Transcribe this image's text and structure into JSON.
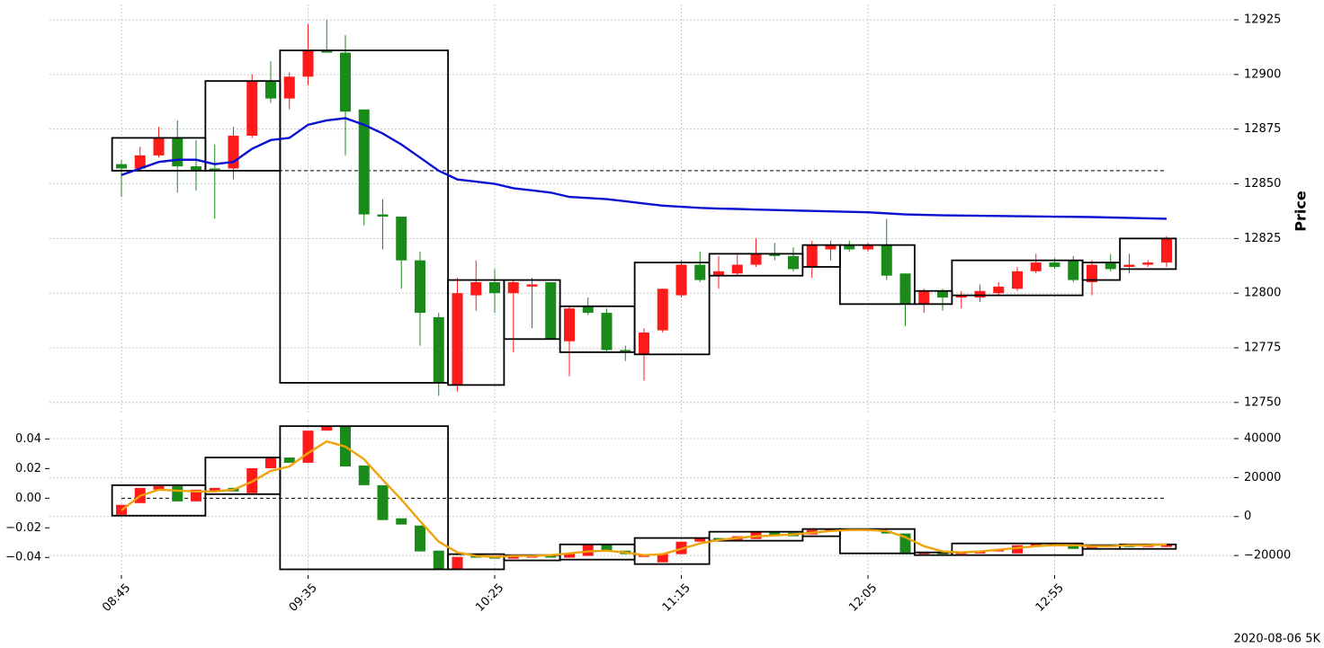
{
  "chart_data": [
    {
      "type": "candlestick",
      "ylabel": "Price",
      "y_axis_side": "right",
      "ylim": [
        12745,
        12932
      ],
      "yticks": [
        12750,
        12775,
        12800,
        12825,
        12850,
        12875,
        12900,
        12925
      ],
      "grid": true,
      "up_color": "#ff1a1a",
      "down_color": "#1a8a1a",
      "open": [
        12859,
        12857,
        12863,
        12871,
        12858,
        12857,
        12857,
        12872,
        12897,
        12889,
        12899,
        12911,
        12910,
        12884,
        12836,
        12835,
        12815,
        12789,
        12758,
        12799,
        12805,
        12800,
        12803,
        12805,
        12778,
        12794,
        12791,
        12774,
        12772,
        12783,
        12799,
        12813,
        12808,
        12809,
        12813,
        12818,
        12817,
        12812,
        12820,
        12822,
        12820,
        12822,
        12809,
        12795,
        12801,
        12798,
        12798,
        12800,
        12802,
        12810,
        12814,
        12815,
        12805,
        12814,
        12812,
        12813,
        12814
      ],
      "high": [
        12861,
        12867,
        12876,
        12879,
        12870,
        12868,
        12876,
        12900,
        12906,
        12901,
        12923,
        12925,
        12918,
        12884,
        12843,
        12835,
        12819,
        12791,
        12807,
        12815,
        12811,
        12806,
        12807,
        12805,
        12794,
        12798,
        12793,
        12776,
        12784,
        12802,
        12815,
        12819,
        12817,
        12818,
        12825,
        12823,
        12821,
        12824,
        12824,
        12824,
        12823,
        12834,
        12809,
        12802,
        12802,
        12801,
        12804,
        12805,
        12812,
        12818,
        12816,
        12817,
        12815,
        12818,
        12818,
        12815,
        12826
      ],
      "low": [
        12844,
        12856,
        12862,
        12846,
        12847,
        12834,
        12852,
        12871,
        12887,
        12884,
        12895,
        12910,
        12863,
        12831,
        12820,
        12802,
        12776,
        12753,
        12755,
        12792,
        12791,
        12773,
        12784,
        12779,
        12762,
        12790,
        12773,
        12769,
        12760,
        12782,
        12798,
        12805,
        12802,
        12808,
        12812,
        12815,
        12810,
        12807,
        12815,
        12819,
        12819,
        12806,
        12785,
        12791,
        12792,
        12793,
        12796,
        12799,
        12801,
        12809,
        12811,
        12805,
        12799,
        12810,
        12809,
        12812,
        12812
      ],
      "close": [
        12857,
        12863,
        12871,
        12858,
        12856,
        12856,
        12872,
        12897,
        12889,
        12899,
        12911,
        12910,
        12883,
        12836,
        12835,
        12815,
        12791,
        12759,
        12800,
        12805,
        12800,
        12805,
        12804,
        12779,
        12793,
        12791,
        12774,
        12773,
        12782,
        12802,
        12813,
        12806,
        12810,
        12813,
        12818,
        12817,
        12811,
        12822,
        12822,
        12820,
        12822,
        12808,
        12795,
        12801,
        12798,
        12799,
        12801,
        12803,
        12810,
        12814,
        12812,
        12806,
        12813,
        12811,
        12813,
        12814,
        12825
      ],
      "line": {
        "color": "#0a10d0",
        "values": [
          12854,
          12857,
          12860,
          12861,
          12861,
          12859,
          12860,
          12866,
          12870,
          12871,
          12877,
          12879,
          12880,
          12877,
          12873,
          12868,
          12862,
          12856,
          12852,
          12851,
          12850,
          12848,
          12847,
          12846,
          12844,
          12843.5,
          12843,
          12842,
          12841,
          12840,
          12839.5,
          12839,
          12838.7,
          12838.5,
          12838.2,
          12838,
          12837.8,
          12837.6,
          12837.4,
          12837.2,
          12837,
          12836.5,
          12836,
          12835.8,
          12835.6,
          12835.5,
          12835.4,
          12835.3,
          12835.2,
          12835.1,
          12835,
          12834.9,
          12834.8,
          12834.6,
          12834.4,
          12834.2,
          12834
        ]
      },
      "reference_line": 12856,
      "boxes": [
        {
          "start": 0,
          "end": 4,
          "low": 12856,
          "high": 12871
        },
        {
          "start": 5,
          "end": 8,
          "low": 12856,
          "high": 12897
        },
        {
          "start": 9,
          "end": 17,
          "low": 12759,
          "high": 12911
        },
        {
          "start": 18,
          "end": 20,
          "low": 12758,
          "high": 12806
        },
        {
          "start": 21,
          "end": 23,
          "low": 12779,
          "high": 12806
        },
        {
          "start": 24,
          "end": 27,
          "low": 12773,
          "high": 12794
        },
        {
          "start": 28,
          "end": 31,
          "low": 12772,
          "high": 12814
        },
        {
          "start": 32,
          "end": 36,
          "low": 12808,
          "high": 12818
        },
        {
          "start": 37,
          "end": 38,
          "low": 12812,
          "high": 12822
        },
        {
          "start": 39,
          "end": 42,
          "low": 12795,
          "high": 12822
        },
        {
          "start": 43,
          "end": 44,
          "low": 12795,
          "high": 12801
        },
        {
          "start": 45,
          "end": 51,
          "low": 12799,
          "high": 12815
        },
        {
          "start": 52,
          "end": 53,
          "low": 12806,
          "high": 12814
        },
        {
          "start": 54,
          "end": 56,
          "low": 12811,
          "high": 12825
        }
      ]
    },
    {
      "type": "candlestick",
      "annotation": "2020-08-06 5K",
      "categories": [
        "08:45",
        null,
        null,
        null,
        null,
        null,
        null,
        null,
        null,
        null,
        "09:35",
        null,
        null,
        null,
        null,
        null,
        null,
        null,
        null,
        null,
        "10:25",
        null,
        null,
        null,
        null,
        null,
        null,
        null,
        null,
        null,
        "11:15",
        null,
        null,
        null,
        null,
        null,
        null,
        null,
        null,
        null,
        "12:05",
        null,
        null,
        null,
        null,
        null,
        null,
        null,
        null,
        null,
        "12:55",
        null,
        null,
        null,
        null,
        null,
        null
      ],
      "ylim": [
        -0.052,
        0.053
      ],
      "yticks": [
        {
          "value": -0.04,
          "label": "−0.04"
        },
        {
          "value": -0.02,
          "label": "−0.02"
        },
        {
          "value": 0,
          "label": "0.00"
        },
        0.02,
        0.04
      ],
      "y2lim": [
        -30100,
        49700
      ],
      "y2ticks": [
        {
          "value": -20000,
          "label": "−20000"
        },
        0,
        20000,
        40000
      ],
      "grid": true,
      "up_color": "#ff1a1a",
      "down_color": "#1a8a1a",
      "axis": "y2",
      "open": [
        900,
        6900,
        13800,
        15600,
        7800,
        13300,
        14700,
        12000,
        24800,
        30300,
        27600,
        44100,
        46400,
        26200,
        16100,
        -900,
        -4600,
        -17500,
        -27100,
        -20200,
        -20200,
        -21600,
        -21100,
        -19800,
        -21100,
        -20200,
        -14300,
        -17500,
        -20700,
        -23500,
        -19300,
        -12900,
        -11000,
        -12000,
        -11500,
        -7800,
        -8300,
        -9200,
        -7400,
        -6400,
        -7400,
        -7400,
        -8700,
        -19300,
        -18400,
        -19300,
        -18900,
        -17900,
        -18900,
        -15200,
        -13800,
        -14300,
        -16100,
        -15600,
        -14700,
        -15600,
        -15600
      ],
      "close": [
        6000,
        14700,
        15600,
        7800,
        13800,
        14700,
        12900,
        24800,
        29900,
        27600,
        44100,
        46400,
        25700,
        16100,
        -1800,
        -4100,
        -17900,
        -27100,
        -20700,
        -21100,
        -21600,
        -19800,
        -19800,
        -21100,
        -18900,
        -14300,
        -17500,
        -19300,
        -19300,
        -19300,
        -12900,
        -11000,
        -12000,
        -10100,
        -7800,
        -9700,
        -10100,
        -6900,
        -6400,
        -7400,
        -6400,
        -8700,
        -19300,
        -18400,
        -19300,
        -18400,
        -17500,
        -17000,
        -14700,
        -13800,
        -14700,
        -16600,
        -14700,
        -14700,
        -15600,
        -14700,
        -14300
      ],
      "line": {
        "color": "#f0a30a",
        "axis": "y2",
        "values": [
          3200,
          10600,
          13800,
          13300,
          12900,
          12900,
          13800,
          17900,
          23400,
          25700,
          32600,
          38600,
          35900,
          29400,
          18900,
          8700,
          -2300,
          -12900,
          -18400,
          -20200,
          -20700,
          -20200,
          -20200,
          -19800,
          -18900,
          -17900,
          -17500,
          -18400,
          -19800,
          -19300,
          -16600,
          -13800,
          -12000,
          -11000,
          -10100,
          -9700,
          -9200,
          -8300,
          -7400,
          -6900,
          -6900,
          -7400,
          -10600,
          -15200,
          -17900,
          -18400,
          -17900,
          -17000,
          -16100,
          -15200,
          -14700,
          -14700,
          -15200,
          -15200,
          -14700,
          -14700,
          -14300
        ]
      },
      "reference_line": 0,
      "boxes": [
        {
          "start": 0,
          "end": 4,
          "low": 460,
          "high": 16100
        },
        {
          "start": 5,
          "end": 8,
          "low": 11500,
          "high": 30300
        },
        {
          "start": 9,
          "end": 17,
          "low": -27100,
          "high": 46400
        },
        {
          "start": 18,
          "end": 20,
          "low": -27100,
          "high": -19300
        },
        {
          "start": 21,
          "end": 23,
          "low": -22500,
          "high": -19800
        },
        {
          "start": 24,
          "end": 27,
          "low": -22100,
          "high": -14300
        },
        {
          "start": 28,
          "end": 31,
          "low": -24400,
          "high": -11000
        },
        {
          "start": 32,
          "end": 36,
          "low": -12400,
          "high": -7800
        },
        {
          "start": 37,
          "end": 38,
          "low": -10100,
          "high": -6400
        },
        {
          "start": 39,
          "end": 42,
          "low": -18900,
          "high": -6400
        },
        {
          "start": 43,
          "end": 44,
          "low": -19800,
          "high": -18400
        },
        {
          "start": 45,
          "end": 51,
          "low": -19800,
          "high": -13800
        },
        {
          "start": 52,
          "end": 53,
          "low": -16600,
          "high": -14700
        },
        {
          "start": 54,
          "end": 56,
          "low": -16600,
          "high": -14300
        }
      ]
    }
  ]
}
